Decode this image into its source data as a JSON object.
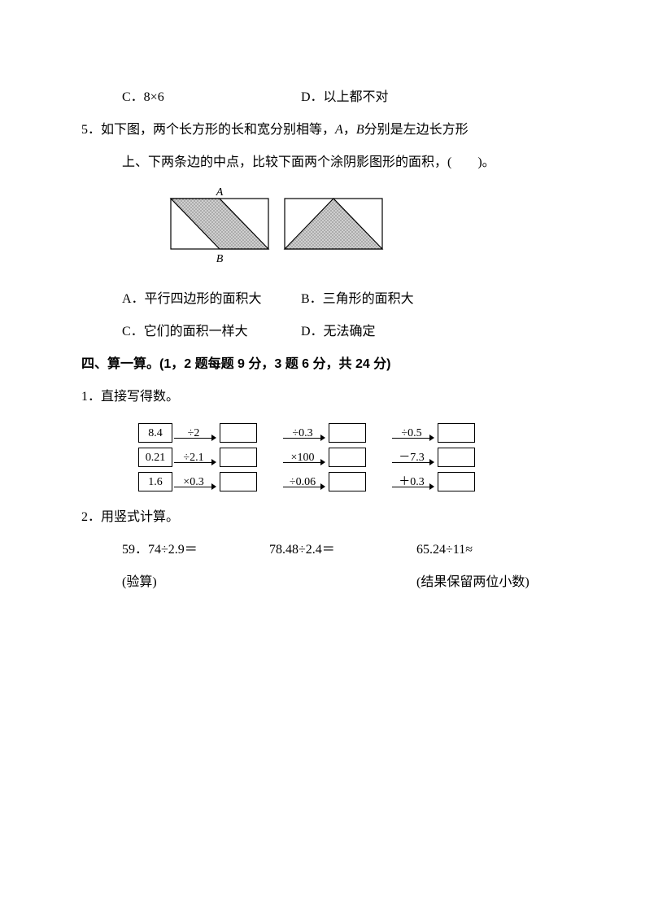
{
  "q4_options": {
    "c": "C．8×6",
    "d": "D．以上都不对"
  },
  "q5": {
    "num": "5．",
    "stem1": "如下图，两个长方形的长和宽分别相等，",
    "var_a": "A",
    "comma": "，",
    "var_b": "B",
    "stem1b": " 分别是左边长方形",
    "stem2": "上、下两条边的中点，比较下面两个涂阴影图形的面积，(　　)。",
    "opt_a": "A．平行四边形的面积大",
    "opt_b": "B．三角形的面积大",
    "opt_c": "C．它们的面积一样大",
    "opt_d": "D．无法确定",
    "fig": {
      "label_A": "A",
      "label_B": "B",
      "rect_w": 120,
      "rect_h": 62,
      "gap": 18,
      "stroke": "#000000",
      "fill_pattern": "#777777"
    }
  },
  "section4": {
    "title": "四、算一算。(1，2 题每题 9 分，3 题 6 分，共 24 分)"
  },
  "s4q1": {
    "num": "1．",
    "title": "直接写得数。",
    "rows": [
      {
        "start": "8.4",
        "ops": [
          "÷2",
          "÷0.3",
          "÷0.5"
        ]
      },
      {
        "start": "0.21",
        "ops": [
          "÷2.1",
          "×100",
          "－7.3"
        ]
      },
      {
        "start": "1.6",
        "ops": [
          "×0.3",
          "÷0.06",
          "＋0.3"
        ]
      }
    ]
  },
  "s4q2": {
    "num": "2．",
    "title": "用竖式计算。",
    "items": [
      "59．74÷2.9＝",
      "78.48÷2.4＝",
      "65.24÷11≈"
    ],
    "note_left": "(验算)",
    "note_right": "(结果保留两位小数)"
  }
}
